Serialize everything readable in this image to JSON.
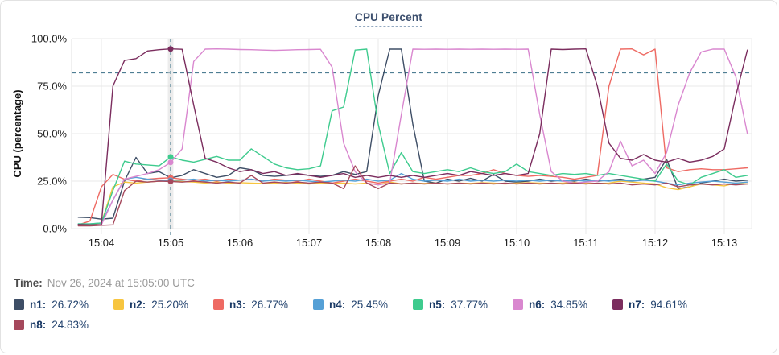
{
  "card": {
    "title": "CPU Percent"
  },
  "time_row": {
    "label": "Time:",
    "value": "Nov 26, 2024 at 15:05:00 UTC"
  },
  "chart_data": {
    "type": "line",
    "title": "CPU Percent",
    "xlabel": "",
    "ylabel": "CPU (percentage)",
    "ylim": [
      0,
      100
    ],
    "grid": true,
    "legend_position": "bottom",
    "y_ticks": [
      {
        "label": "100.0%",
        "value": 100
      },
      {
        "label": "75.0%",
        "value": 75
      },
      {
        "label": "50.0%",
        "value": 50
      },
      {
        "label": "25.0%",
        "value": 25
      },
      {
        "label": "0.0%",
        "value": 0
      }
    ],
    "x_ticks": [
      "15:04",
      "15:05",
      "15:06",
      "15:07",
      "15:08",
      "15:09",
      "15:10",
      "15:11",
      "15:12",
      "15:13"
    ],
    "threshold": {
      "value": 82,
      "style": "dashed",
      "color": "#4e7e93"
    },
    "cursor": {
      "time_label": "15:05:00",
      "index": 8,
      "color": "#4e7e93"
    },
    "x_reference_time": "15:04:00",
    "x_start_seconds": -20,
    "x_step_seconds": 10,
    "series": [
      {
        "name": "n1",
        "color": "#3e4e66",
        "cursor_value": "26.72%",
        "values": [
          6,
          5.8,
          5,
          5.5,
          25,
          37.5,
          29,
          30,
          26.72,
          28,
          31,
          29,
          27,
          28,
          32,
          31,
          28,
          27.5,
          28,
          28.5,
          28,
          27.5,
          28,
          30,
          28.5,
          30,
          70,
          94.5,
          94.5,
          55,
          25,
          24,
          26,
          25,
          26.5,
          25,
          28.5,
          25,
          24.5,
          25,
          26,
          25,
          25.5,
          25,
          26,
          25,
          25.5,
          26,
          25,
          26,
          27,
          36.5,
          21,
          22,
          24,
          25,
          26,
          25,
          25.5
        ]
      },
      {
        "name": "n2",
        "color": "#f7c53f",
        "cursor_value": "25.20%",
        "values": [
          2,
          2.2,
          3,
          22,
          24.5,
          24,
          24.5,
          25,
          25.2,
          24.8,
          24.5,
          24,
          24.5,
          24,
          24.2,
          24,
          23.8,
          24,
          24.3,
          24,
          23.5,
          24,
          23.8,
          24,
          23.5,
          24,
          23,
          24.5,
          23.5,
          24,
          23.8,
          24,
          23.5,
          24,
          23.8,
          24.2,
          24,
          23.5,
          24,
          24.2,
          24,
          23.8,
          24,
          24.3,
          24,
          23.8,
          24,
          25,
          24.5,
          24,
          23.5,
          21.5,
          20.5,
          22,
          23.5,
          23,
          22.5,
          24,
          23.5
        ]
      },
      {
        "name": "n3",
        "color": "#ee6a63",
        "cursor_value": "26.77%",
        "values": [
          2,
          4,
          22,
          28.5,
          26,
          25,
          26,
          26.5,
          26.77,
          26,
          25.5,
          26,
          25,
          26,
          25.5,
          26,
          25,
          26,
          25.5,
          25,
          26,
          25,
          24,
          25,
          26,
          25,
          24,
          25,
          26,
          25,
          27,
          26,
          27,
          28,
          28,
          29,
          31,
          29,
          28,
          27.5,
          28,
          27.5,
          27,
          26,
          27,
          28,
          75,
          94.5,
          94.6,
          91.5,
          94.5,
          32,
          30,
          31,
          31.5,
          31,
          31,
          31.5,
          32
        ]
      },
      {
        "name": "n4",
        "color": "#55a0d6",
        "cursor_value": "25.45%",
        "values": [
          2.5,
          2.5,
          3,
          15,
          26,
          27,
          26,
          25.5,
          25.45,
          25.5,
          26,
          25,
          25.5,
          25,
          25.5,
          26,
          25,
          25.5,
          25,
          25.5,
          25,
          24.5,
          25,
          25.5,
          25,
          26,
          25,
          25.5,
          29,
          26,
          25,
          25.5,
          25,
          26,
          25,
          25.5,
          25,
          25.5,
          25,
          25.5,
          25,
          25.5,
          25,
          25.5,
          25,
          25.5,
          25,
          25.5,
          25,
          25.5,
          25,
          24,
          23,
          24,
          24.5,
          25,
          24.5,
          24,
          24.5
        ]
      },
      {
        "name": "n5",
        "color": "#3ecb8e",
        "cursor_value": "37.77%",
        "values": [
          2.5,
          2.5,
          3,
          20,
          35.5,
          34,
          33.5,
          33,
          37.77,
          36,
          35,
          36.5,
          38,
          36,
          36,
          42,
          38,
          34,
          32,
          31,
          31.5,
          33,
          62,
          64,
          94,
          94.5,
          55,
          29,
          40,
          30,
          29,
          30,
          31,
          30,
          32,
          30,
          29,
          30,
          34,
          30,
          29,
          28,
          29,
          28.5,
          29,
          28,
          29,
          28,
          27,
          26,
          25,
          34,
          25,
          23,
          27,
          29,
          31,
          27,
          28
        ]
      },
      {
        "name": "n6",
        "color": "#d987cf",
        "cursor_value": "34.85%",
        "values": [
          1.8,
          1.8,
          2,
          15,
          26,
          27.5,
          29,
          31,
          34.85,
          42,
          88,
          94.5,
          94.6,
          94.5,
          94.3,
          94.2,
          94,
          93.8,
          94,
          94.2,
          94.3,
          94.4,
          85,
          45,
          30,
          24,
          23,
          24,
          60,
          94.5,
          94.4,
          94.5,
          94.4,
          94.5,
          94.4,
          94.5,
          94.4,
          94.5,
          94.4,
          94.5,
          60,
          30,
          25,
          24,
          24.5,
          25,
          30,
          46,
          33,
          36,
          29,
          40,
          65,
          82,
          93,
          94.5,
          94.5,
          80,
          50
        ]
      },
      {
        "name": "n7",
        "color": "#7b2d5e",
        "cursor_value": "94.61%",
        "values": [
          2.2,
          2,
          2.1,
          75,
          88.5,
          89.5,
          93.5,
          94.2,
          94.61,
          94.4,
          65,
          37,
          35,
          32,
          30,
          31,
          29,
          30,
          28,
          29,
          28,
          27,
          28,
          29,
          27,
          28,
          27,
          28,
          27,
          28,
          27,
          28,
          29,
          28,
          30,
          29,
          28,
          29,
          28,
          29,
          50,
          94.5,
          94.3,
          94.5,
          94.6,
          75,
          45,
          37,
          36,
          39,
          36,
          35,
          37,
          35,
          36,
          38,
          42,
          70,
          94
        ]
      },
      {
        "name": "n8",
        "color": "#a5485c",
        "cursor_value": "24.83%",
        "values": [
          1.5,
          1.5,
          1.8,
          2,
          20,
          25,
          24.5,
          25,
          24.83,
          24.5,
          25,
          24.5,
          24,
          24.5,
          24,
          28,
          24,
          24.5,
          24,
          24.5,
          24,
          24.5,
          24,
          21,
          33,
          24,
          21,
          24,
          23.5,
          24,
          23.5,
          24,
          23.5,
          24,
          23.5,
          24,
          23.5,
          24,
          23.5,
          24,
          23.5,
          24,
          23.5,
          24,
          23.5,
          24,
          23.5,
          24,
          23,
          23.5,
          23,
          24,
          22,
          23,
          23.5,
          23,
          23.5,
          23,
          23.5
        ]
      }
    ]
  }
}
